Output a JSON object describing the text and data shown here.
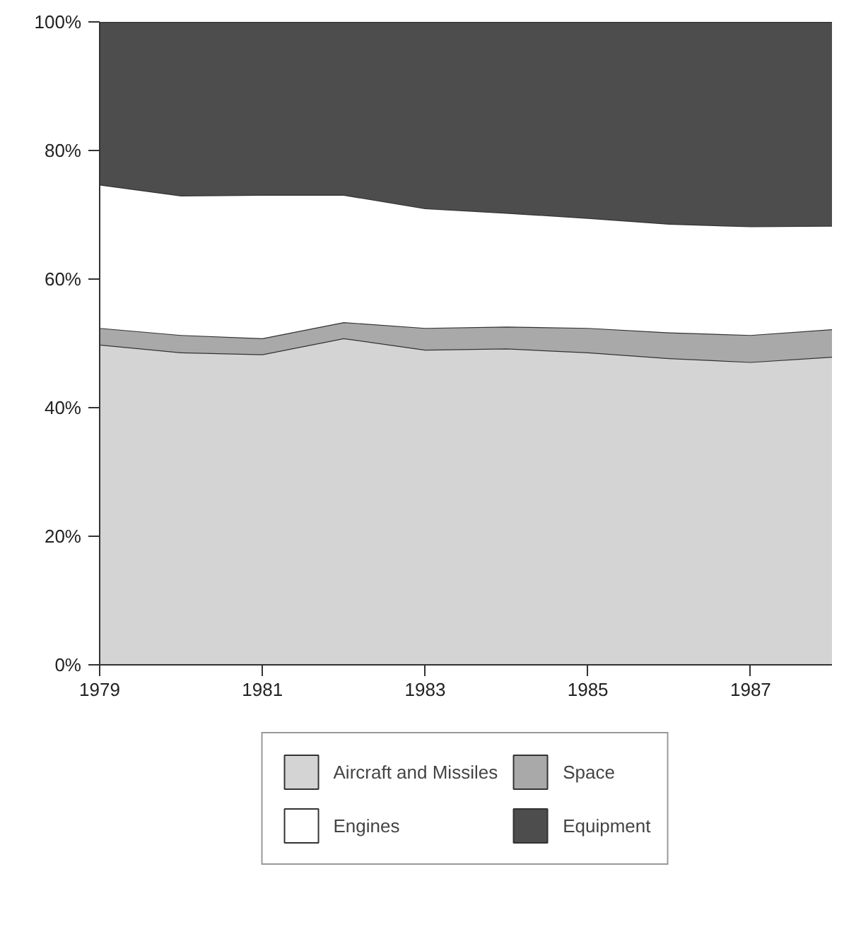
{
  "chart_data": {
    "type": "area",
    "stacked": true,
    "x": [
      1979,
      1980,
      1981,
      1982,
      1983,
      1984,
      1985,
      1986,
      1987,
      1988
    ],
    "series": [
      {
        "name": "Aircraft and Missiles",
        "color": "#d4d4d4",
        "values": [
          49.8,
          48.6,
          48.3,
          50.8,
          49.0,
          49.2,
          48.6,
          47.7,
          47.1,
          47.9
        ]
      },
      {
        "name": "Space",
        "color": "#a9a9a9",
        "values": [
          2.6,
          2.7,
          2.5,
          2.5,
          3.4,
          3.4,
          3.8,
          4.0,
          4.2,
          4.3
        ]
      },
      {
        "name": "Engines",
        "color": "#ffffff",
        "values": [
          22.3,
          21.7,
          22.3,
          19.8,
          18.6,
          17.7,
          17.1,
          16.9,
          16.9,
          16.1
        ]
      },
      {
        "name": "Equipment",
        "color": "#4d4d4d",
        "values": [
          25.3,
          27.0,
          26.9,
          26.9,
          29.0,
          29.7,
          30.5,
          31.4,
          31.8,
          31.7
        ]
      }
    ],
    "xlim": [
      1979,
      1988
    ],
    "xticks": [
      1979,
      1981,
      1983,
      1985,
      1987
    ],
    "ylim": [
      0,
      100
    ],
    "yticks": [
      {
        "value": 0,
        "label": "0%"
      },
      {
        "value": 20,
        "label": "20%"
      },
      {
        "value": 40,
        "label": "40%"
      },
      {
        "value": 60,
        "label": "60%"
      },
      {
        "value": 80,
        "label": "80%"
      },
      {
        "value": 100,
        "label": "100%"
      }
    ],
    "grid": false,
    "legend": "bottom"
  }
}
